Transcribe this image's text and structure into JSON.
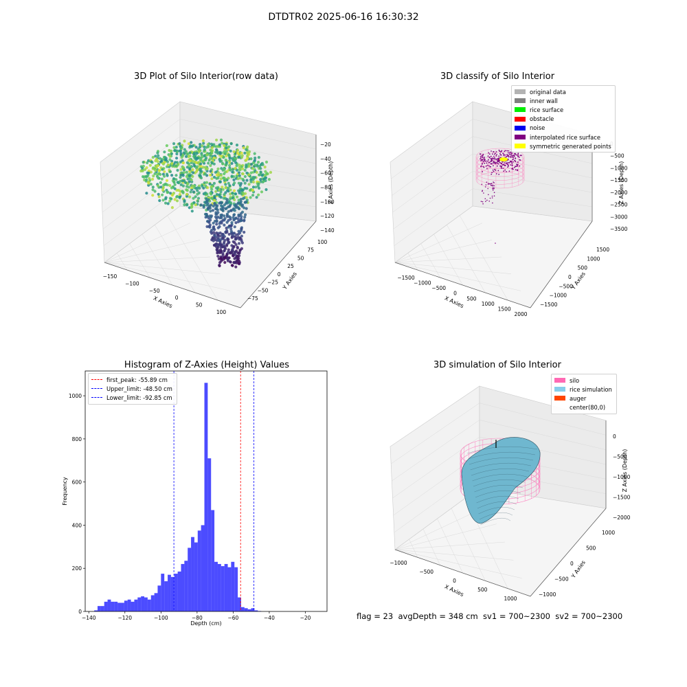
{
  "suptitle": "DTDTR02 2025-06-16 16:30:32",
  "panels": {
    "raw": {
      "title": "3D Plot of Silo Interior(row data)",
      "xlabel": "X Axies",
      "ylabel": "Y Axies",
      "zlabel": "Z Axies (Depth)",
      "xticks": [
        "−150",
        "−100",
        "−50",
        "0",
        "50",
        "100"
      ],
      "yticks": [
        "−75",
        "−50",
        "−25",
        "0",
        "25",
        "50",
        "75",
        "100"
      ],
      "zticks": [
        "−20",
        "−40",
        "−60",
        "−80",
        "−100",
        "−120",
        "−140"
      ]
    },
    "classify": {
      "title": "3D classify of Silo Interior",
      "xlabel": "X Axies",
      "ylabel": "Y Axies",
      "zlabel": "Z Axies (Depth)",
      "xticks": [
        "−1500",
        "−1000",
        "−500",
        "0",
        "500",
        "1000",
        "1500",
        "2000"
      ],
      "yticks": [
        "−1500",
        "−1000",
        "−500",
        "0",
        "500",
        "1000",
        "1500"
      ],
      "zticks": [
        "0",
        "−500",
        "−1000",
        "−1500",
        "−2000",
        "−2500",
        "−3000",
        "−3500"
      ],
      "legend": [
        {
          "label": "original data",
          "color": "#b3b3b3"
        },
        {
          "label": "inner wall",
          "color": "#808080"
        },
        {
          "label": "rice surface",
          "color": "#00ee00"
        },
        {
          "label": "obstacle",
          "color": "#ff0000"
        },
        {
          "label": "noise",
          "color": "#0000ee"
        },
        {
          "label": "interpolated rice surface",
          "color": "#800080"
        },
        {
          "label": "symmetric generated points",
          "color": "#ffff00"
        }
      ]
    },
    "simulation": {
      "title": "3D simulation of Silo Interior",
      "xlabel": "X Axies",
      "ylabel": "Y Axies",
      "zlabel": "Z Axies (Depth)",
      "xticks": [
        "−1000",
        "−500",
        "0",
        "500",
        "1000"
      ],
      "yticks": [
        "−1000",
        "−500",
        "0",
        "500",
        "1000"
      ],
      "zticks": [
        "0",
        "−500",
        "−1000",
        "−1500",
        "−2000"
      ],
      "legend": [
        {
          "label": "silo",
          "color": "#ff69b4"
        },
        {
          "label": "rice simulation",
          "color": "#87ceeb"
        },
        {
          "label": "auger",
          "color": "#ff4500"
        },
        {
          "label": "center(80,0)",
          "color": ""
        }
      ],
      "footer": "flag = 23  avgDepth = 348 cm  sv1 = 700~2300  sv2 = 700~2300"
    }
  },
  "chart_data": {
    "type": "bar",
    "title": "Histogram of Z-Axies (Height) Values",
    "xlabel": "Depth (cm)",
    "ylabel": "Frequency",
    "xlim": [
      -142,
      -8
    ],
    "ylim": [
      0,
      1115
    ],
    "xticks": [
      "−140",
      "−120",
      "−100",
      "−80",
      "−60",
      "−40",
      "−20"
    ],
    "yticks": [
      "0",
      "200",
      "400",
      "600",
      "800",
      "1000"
    ],
    "bin_start": -137,
    "bin_width": 1.85,
    "values": [
      5,
      25,
      25,
      45,
      55,
      45,
      45,
      40,
      40,
      50,
      55,
      45,
      55,
      65,
      70,
      65,
      55,
      75,
      85,
      120,
      175,
      140,
      170,
      160,
      175,
      185,
      220,
      235,
      295,
      345,
      320,
      375,
      400,
      1060,
      710,
      470,
      230,
      220,
      210,
      220,
      205,
      230,
      205,
      65,
      20,
      15,
      10,
      15,
      5,
      2
    ],
    "color": "#0000ff",
    "lines": [
      {
        "label": "first_peak: -55.89 cm",
        "x": -55.89,
        "color": "#ff0000"
      },
      {
        "label": "Upper_limit: -48.50 cm",
        "x": -48.5,
        "color": "#0000ff"
      },
      {
        "label": "Lower_limit: -92.85 cm",
        "x": -92.85,
        "color": "#0000ff"
      }
    ]
  }
}
